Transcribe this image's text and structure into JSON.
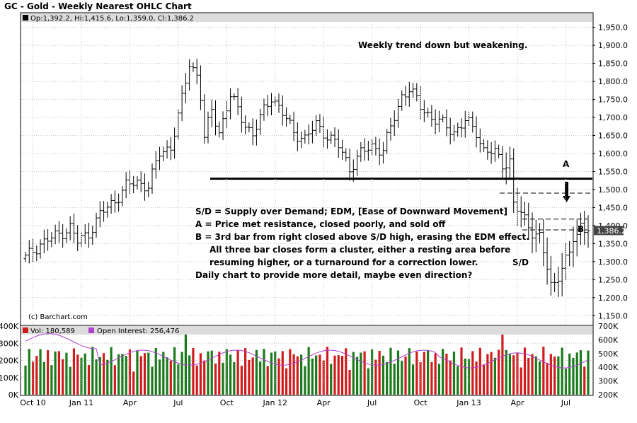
{
  "chart_data": {
    "type": "ohlc",
    "title": "GC - Gold - Weekly Nearest OHLC Chart",
    "legend_ohlc": "Op:1,392.2, Hi:1,415.6, Lo:1,359.0, Cl:1,386.2",
    "last_price_label": "1,386.2",
    "last_price": 1386.2,
    "credit": "(c) Barchart.com",
    "price_axis": {
      "ylim": [
        1125,
        1965
      ],
      "ticks": [
        "1,950.0",
        "1,900.0",
        "1,850.0",
        "1,800.0",
        "1,750.0",
        "1,700.0",
        "1,650.0",
        "1,600.0",
        "1,550.0",
        "1,500.0",
        "1,450.0",
        "1,400.0",
        "1,350.0",
        "1,300.0",
        "1,250.0",
        "1,200.0",
        "1,150.0"
      ],
      "tick_values": [
        1950,
        1900,
        1850,
        1800,
        1750,
        1700,
        1650,
        1600,
        1550,
        1500,
        1450,
        1400,
        1350,
        1300,
        1250,
        1200,
        1150
      ]
    },
    "x_labels": [
      "Oct 10",
      "Jan 11",
      "Apr",
      "Jul",
      "Oct",
      "Jan 12",
      "Apr",
      "Jul",
      "Oct",
      "Jan 13",
      "Apr",
      "Jul"
    ],
    "x_label_week": [
      2,
      15,
      28,
      41,
      54,
      67,
      80,
      93,
      106,
      119,
      132,
      145
    ],
    "weeks": 152,
    "close_anchors": [
      [
        0,
        1310
      ],
      [
        4,
        1350
      ],
      [
        8,
        1370
      ],
      [
        12,
        1395
      ],
      [
        14,
        1355
      ],
      [
        17,
        1380
      ],
      [
        20,
        1430
      ],
      [
        24,
        1470
      ],
      [
        27,
        1510
      ],
      [
        30,
        1520
      ],
      [
        33,
        1510
      ],
      [
        36,
        1600
      ],
      [
        39,
        1620
      ],
      [
        41,
        1700
      ],
      [
        44,
        1850
      ],
      [
        46,
        1820
      ],
      [
        47,
        1760
      ],
      [
        48,
        1640
      ],
      [
        50,
        1720
      ],
      [
        52,
        1660
      ],
      [
        55,
        1760
      ],
      [
        58,
        1700
      ],
      [
        61,
        1650
      ],
      [
        64,
        1720
      ],
      [
        66,
        1760
      ],
      [
        69,
        1710
      ],
      [
        72,
        1660
      ],
      [
        75,
        1640
      ],
      [
        78,
        1680
      ],
      [
        81,
        1650
      ],
      [
        84,
        1620
      ],
      [
        87,
        1560
      ],
      [
        90,
        1600
      ],
      [
        93,
        1620
      ],
      [
        96,
        1610
      ],
      [
        99,
        1700
      ],
      [
        101,
        1760
      ],
      [
        103,
        1780
      ],
      [
        106,
        1730
      ],
      [
        109,
        1700
      ],
      [
        112,
        1680
      ],
      [
        115,
        1660
      ],
      [
        118,
        1690
      ],
      [
        121,
        1660
      ],
      [
        123,
        1610
      ],
      [
        126,
        1600
      ],
      [
        128,
        1570
      ],
      [
        130,
        1580
      ],
      [
        131,
        1460
      ],
      [
        133,
        1430
      ],
      [
        135,
        1400
      ],
      [
        136,
        1385
      ],
      [
        138,
        1370
      ],
      [
        140,
        1280
      ],
      [
        141,
        1230
      ],
      [
        142,
        1240
      ],
      [
        144,
        1290
      ],
      [
        146,
        1320
      ],
      [
        147,
        1360
      ],
      [
        148,
        1370
      ],
      [
        149,
        1400
      ],
      [
        150,
        1395
      ],
      [
        151,
        1386
      ]
    ],
    "volume_panel": {
      "volume_label": "Vol: 180,589",
      "oi_label": "Open Interest: 256,476",
      "volume_ticks": [
        "400K",
        "300K",
        "200K",
        "100K",
        "0K"
      ],
      "volume_tick_values": [
        400000,
        300000,
        200000,
        100000,
        0
      ],
      "vol_range": [
        0,
        400000
      ],
      "oi_ticks": [
        "700K",
        "600K",
        "500K",
        "400K",
        "300K",
        "200K"
      ],
      "oi_tick_values": [
        700000,
        600000,
        500000,
        400000,
        300000,
        200000
      ],
      "oi_range": [
        200000,
        700000
      ],
      "up_color": "#1b7a1b",
      "down_color": "#d01c1c",
      "oi_color": "#b040d0"
    }
  },
  "annotations": {
    "headline": "Weekly trend down  but weakening.",
    "lines": [
      "S/D = Supply over Demand; EDM, [Ease of Downward Movement]",
      "A = Price met resistance, closed poorly, and sold off",
      "B = 3rd bar from right closed above S/D high, erasing the EDM effect.",
      "All three bar closes form a cluster, either a resting area before",
      "resuming higher, or a turnaround for a correction lower.",
      "Daily chart to provide more detail, maybe even direction?"
    ],
    "label_A": "A",
    "label_B": "B",
    "label_SD": "S/D",
    "support_level": 1530,
    "resistance_level": 1490,
    "sd_high_level": 1418,
    "sd_low_level": 1388
  },
  "colors": {
    "bar": "#000000",
    "panel_header": "#dcdcdc",
    "grid": "#c8c8c8",
    "vol_red": "#d01c1c",
    "vol_green": "#1b7a1b",
    "oi_legend": "#b040d0"
  }
}
